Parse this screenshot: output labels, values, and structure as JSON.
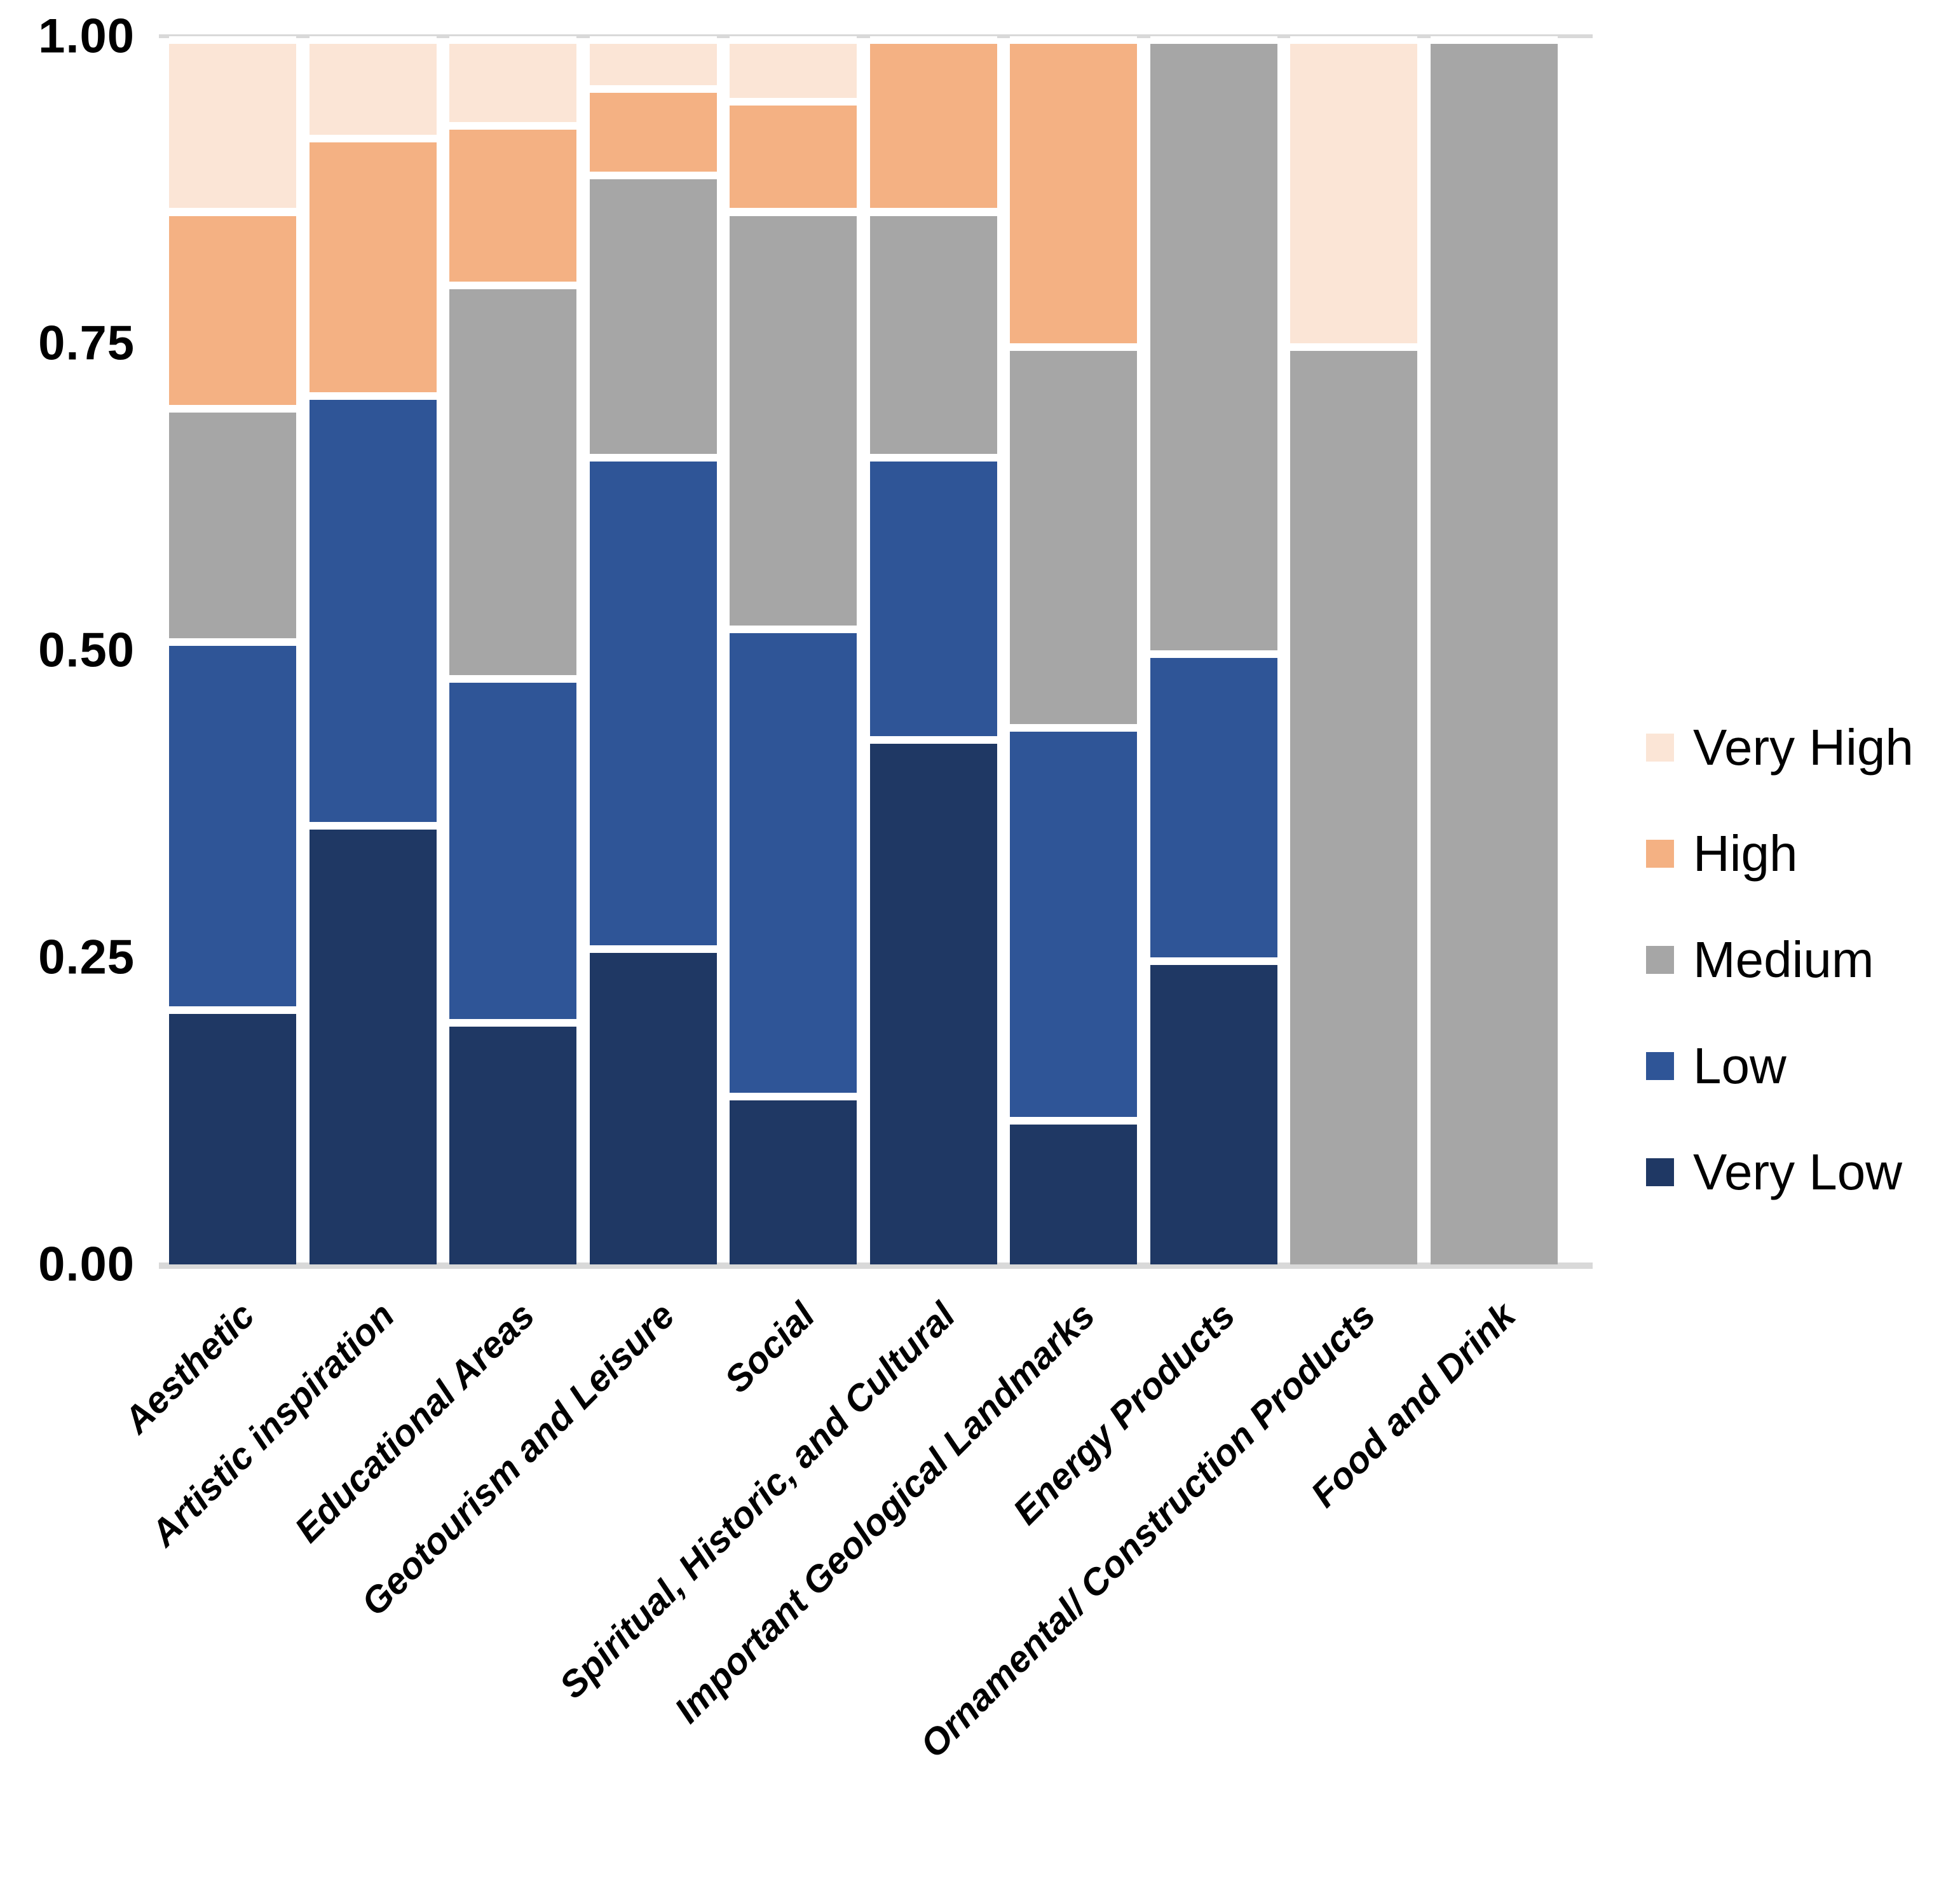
{
  "chart_data": {
    "type": "bar",
    "subtype": "stacked-100",
    "orientation": "vertical",
    "title": "",
    "xlabel": "",
    "ylabel": "",
    "ylim": [
      0,
      1
    ],
    "y_tick_labels": [
      "1.00",
      "0.75",
      "0.50",
      "0.25",
      "0.00"
    ],
    "y_tick_values": [
      1.0,
      0.75,
      0.5,
      0.25,
      0.0
    ],
    "grid": "top-and-bottom-lines-only",
    "legend_position": "right",
    "categories": [
      "Aesthetic",
      "Artistic inspiration",
      "Educational Areas",
      "Geotourism and Leisure",
      "Social",
      "Spiritual, Historic, and Cultural",
      "Important Geological Landmarks",
      "Energy Products",
      "Ornamental/ Construction Products",
      "Food and Drink"
    ],
    "stack_order_bottom_to_top": [
      "Very Low",
      "Low",
      "Medium",
      "High",
      "Very High"
    ],
    "series": [
      {
        "name": "Very Low",
        "color": "#1F3864",
        "values": [
          0.21,
          0.36,
          0.2,
          0.26,
          0.14,
          0.43,
          0.12,
          0.25,
          0.0,
          0.0
        ]
      },
      {
        "name": "Low",
        "color": "#2F5597",
        "values": [
          0.3,
          0.35,
          0.28,
          0.4,
          0.38,
          0.23,
          0.32,
          0.25,
          0.0,
          0.0
        ]
      },
      {
        "name": "Medium",
        "color": "#A6A6A6",
        "values": [
          0.19,
          0.0,
          0.32,
          0.23,
          0.34,
          0.2,
          0.31,
          0.5,
          0.75,
          1.0
        ]
      },
      {
        "name": "High",
        "color": "#F4B183",
        "values": [
          0.16,
          0.21,
          0.13,
          0.07,
          0.09,
          0.14,
          0.25,
          0.0,
          0.0,
          0.0
        ]
      },
      {
        "name": "Very High",
        "color": "#FBE5D6",
        "values": [
          0.14,
          0.08,
          0.07,
          0.04,
          0.05,
          0.0,
          0.0,
          0.0,
          0.25,
          0.0
        ]
      }
    ]
  },
  "legend": {
    "items": [
      {
        "label": "Very High",
        "color": "#FBE5D6"
      },
      {
        "label": "High",
        "color": "#F4B183"
      },
      {
        "label": "Medium",
        "color": "#A6A6A6"
      },
      {
        "label": "Low",
        "color": "#2F5597"
      },
      {
        "label": "Very Low",
        "color": "#1F3864"
      }
    ]
  },
  "colors": {
    "background": "#FFFFFF",
    "gridline": "#D9D9D9",
    "text": "#000000",
    "segment_separator": "#FFFFFF"
  }
}
